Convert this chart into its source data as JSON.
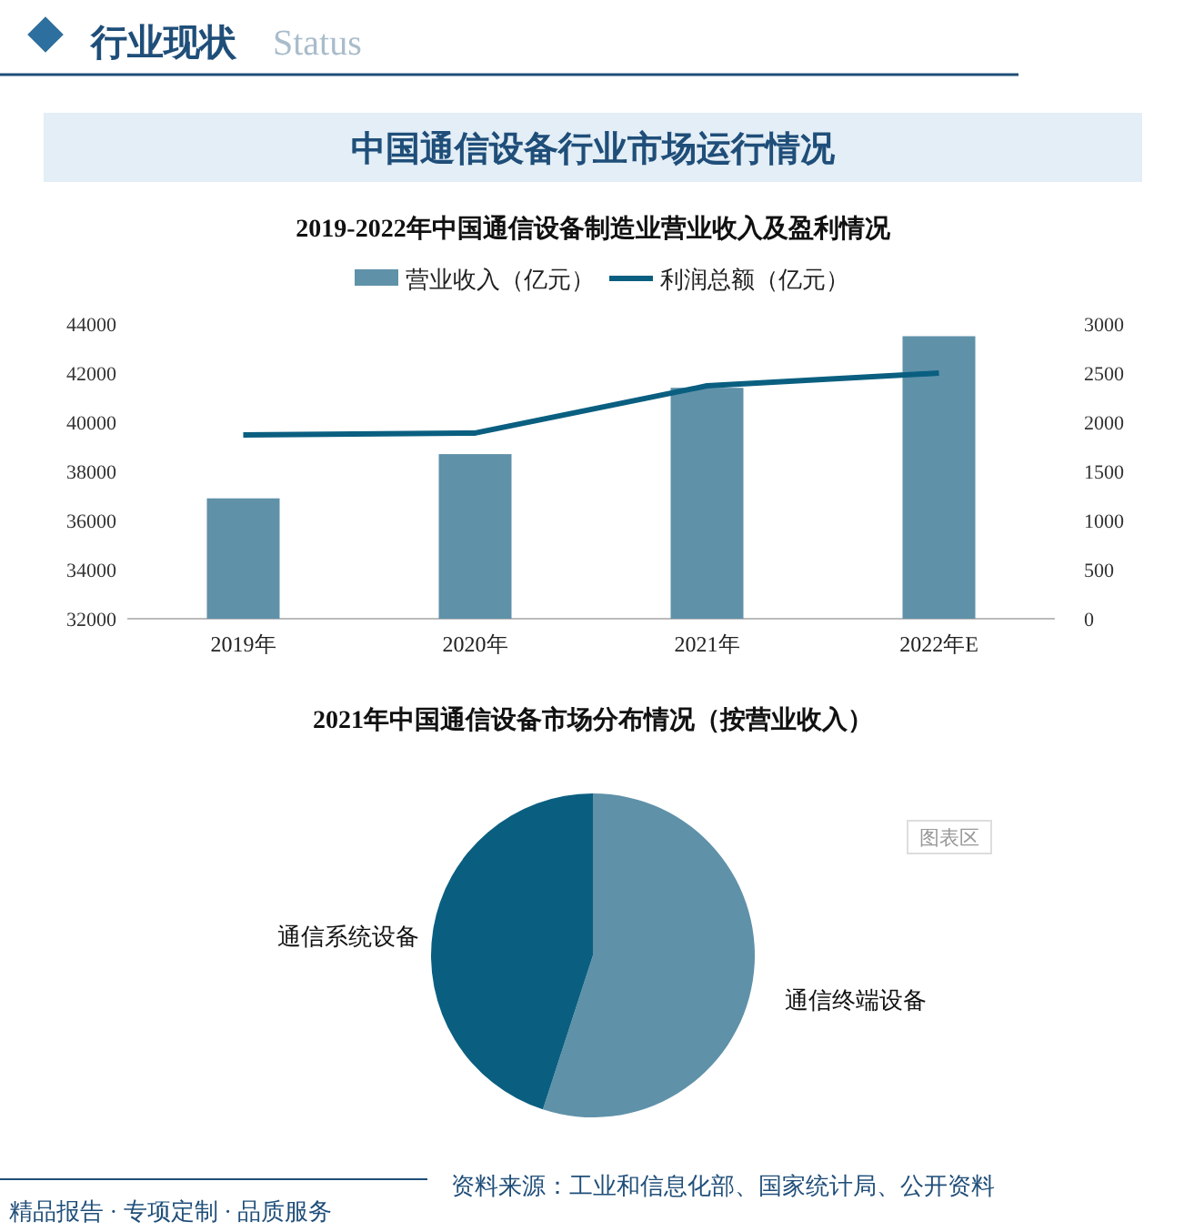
{
  "chart_data": [
    {
      "type": "bar",
      "title": "2019-2022年中国通信设备制造业营业收入及盈利情况",
      "annotations": [
        "行业现状",
        "Status",
        "中国通信设备行业市场运行情况"
      ],
      "categories": [
        "2019年",
        "2020年",
        "2021年",
        "2022年E"
      ],
      "series": [
        {
          "name": "营业收入（亿元）",
          "type": "bar",
          "color": "#5f91a9",
          "values": [
            36900,
            38700,
            41400,
            43500
          ]
        },
        {
          "name": "利润总额（亿元）",
          "type": "line",
          "axis": "y2",
          "color": "#0a5f80",
          "values": [
            1870,
            1890,
            2370,
            2500
          ]
        }
      ],
      "ylim": [
        32000,
        44000
      ],
      "yticks": [
        32000,
        34000,
        36000,
        38000,
        40000,
        42000,
        44000
      ],
      "y2lim": [
        0,
        3000
      ],
      "y2ticks": [
        0,
        500,
        1000,
        1500,
        2000,
        2500,
        3000
      ],
      "legend": "top",
      "grid": false,
      "marker": "none"
    },
    {
      "type": "pie",
      "title": "2021年中国通信设备市场分布情况（按营业收入）",
      "categories": [
        "通信终端设备",
        "通信系统设备"
      ],
      "values": [
        55,
        45
      ],
      "colors": [
        "#5f91a9",
        "#0a5f80"
      ],
      "annotations": [
        "图表区",
        "资料来源：工业和信息化部、国家统计局、公开资料",
        "精品报告 · 专项定制 · 品质服务"
      ]
    }
  ]
}
